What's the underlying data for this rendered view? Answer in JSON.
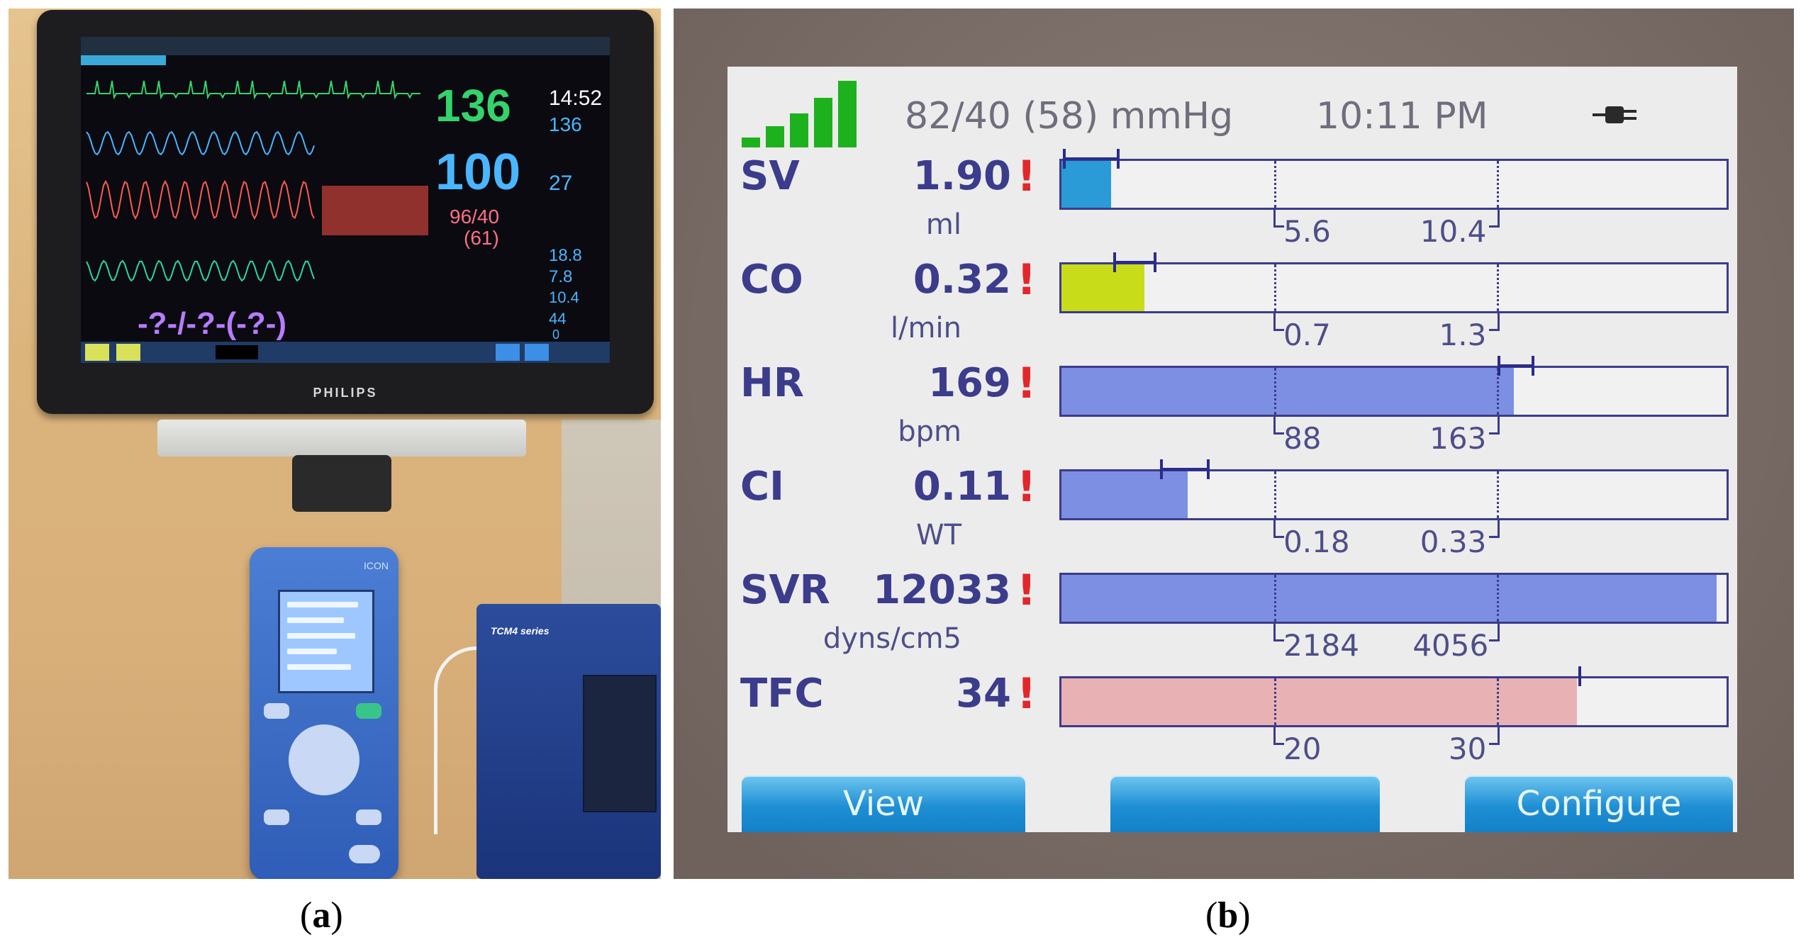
{
  "panel_a": {
    "caption_open": "(",
    "caption_letter": "a",
    "caption_close": ")",
    "monitor": {
      "brand": "PHILIPS",
      "hr_value": "136",
      "hr_secondary": "136",
      "time": "14:52",
      "spo2_value": "100",
      "resp_value": "27",
      "nbp_value": "96/40",
      "nbp_mean": "(61)",
      "placeholder_readout": "-?-/-?-(-?-)",
      "side_values": [
        "18.8",
        "7.8",
        "10.4",
        "44",
        "0"
      ],
      "colors": {
        "ecg": "#34d36b",
        "pleth": "#49b6ff",
        "art": "#ff5b4f",
        "resp": "#2ad7a4",
        "nbp": "#ff6f8a",
        "placeholder": "#b77cff"
      }
    },
    "icon_device_label": "ICON",
    "tcm4_label": "TCM4 series"
  },
  "panel_b": {
    "caption_open": "(",
    "caption_letter": "b",
    "caption_close": ")",
    "header": {
      "pressure": "82/40 (58) mmHg",
      "time": "10:11 PM",
      "signal_icon": "signal-bars-icon",
      "power_icon": "power-plug-icon",
      "signal_color": "#1db21d"
    },
    "rows": [
      {
        "label": "SV",
        "value": "1.90",
        "alarm": "!",
        "unit": "ml",
        "norm_low": "5.6",
        "norm_high": "10.4",
        "fill_fraction": 0.075,
        "fill_color": "#2a9bd6",
        "target_low": 0.005,
        "target_high": 0.09
      },
      {
        "label": "CO",
        "value": "0.32",
        "alarm": "!",
        "unit": "l/min",
        "norm_low": "0.7",
        "norm_high": "1.3",
        "fill_fraction": 0.125,
        "fill_color": "#c9dc1a",
        "target_low": 0.08,
        "target_high": 0.145
      },
      {
        "label": "HR",
        "value": "169",
        "alarm": "!",
        "unit": "bpm",
        "norm_low": "88",
        "norm_high": "163",
        "fill_fraction": 0.68,
        "fill_color": "#7d8fe3",
        "target_low": 0.655,
        "target_high": 0.71
      },
      {
        "label": "CI",
        "value": "0.11",
        "alarm": "!",
        "unit": "WT",
        "norm_low": "0.18",
        "norm_high": "0.33",
        "fill_fraction": 0.19,
        "fill_color": "#7d8fe3",
        "target_low": 0.15,
        "target_high": 0.225
      },
      {
        "label": "SVR",
        "value": "12033",
        "alarm": "!",
        "unit": "dyns/cm5",
        "norm_low": "2184",
        "norm_high": "4056",
        "fill_fraction": 0.985,
        "fill_color": "#7d8fe3",
        "target_low": null,
        "target_high": null
      },
      {
        "label": "TFC",
        "value": "34",
        "alarm": "!",
        "unit": "",
        "norm_low": "20",
        "norm_high": "30",
        "fill_fraction": 0.775,
        "fill_color": "#e8b2b4",
        "target_low": 0.775,
        "target_high": 0.775
      }
    ],
    "softkeys": {
      "left": "View",
      "middle": "",
      "right": "Configure"
    }
  }
}
